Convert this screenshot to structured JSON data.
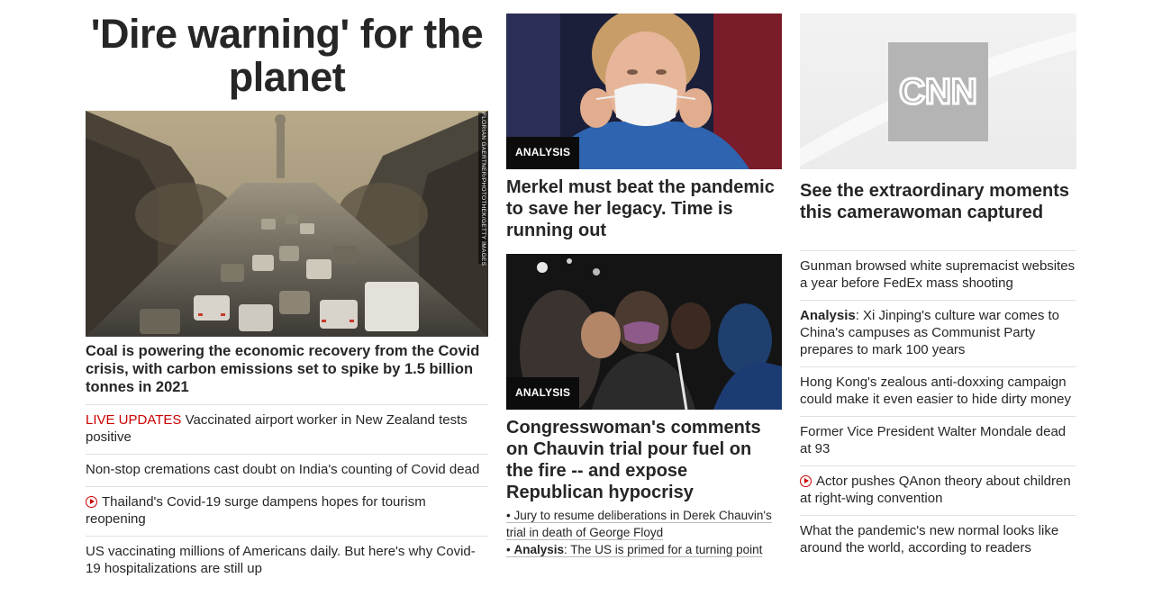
{
  "col1": {
    "headline": "'Dire warning' for the planet",
    "image_credit": "FLORIAN GAERTNER/PHOTOTHEK/GETTY IMAGES",
    "lead_caption": "Coal is powering the economic recovery from the Covid crisis, with carbon emissions set to spike by 1.5 billion tonnes in 2021",
    "items": [
      {
        "prefix": "LIVE UPDATES",
        "text": " Vaccinated airport worker in New Zealand tests positive"
      },
      {
        "text": "Non-stop cremations cast doubt on India's counting of Covid dead"
      },
      {
        "video": true,
        "text": "Thailand's Covid-19 surge dampens hopes for tourism reopening"
      },
      {
        "text": "US vaccinating millions of Americans daily. But here's why Covid-19 hospitalizations are still up"
      }
    ]
  },
  "col2": {
    "card1": {
      "tag": "ANALYSIS",
      "headline": "Merkel must beat the pandemic to save her legacy. Time is running out"
    },
    "card2": {
      "tag": "ANALYSIS",
      "headline": "Congresswoman's comments on Chauvin trial pour fuel on the fire -- and expose Republican hypocrisy"
    },
    "sub_links": [
      {
        "bullet": "• ",
        "text": "Jury to resume deliberations in Derek Chauvin's trial in death of George Floyd"
      },
      {
        "bullet": "• ",
        "bold": "Analysis",
        "text": ": The US is primed for a turning point"
      }
    ]
  },
  "col3": {
    "logo_text": "CNN",
    "headline": "See the extraordinary moments this camerawoman captured",
    "items": [
      {
        "text": "Gunman browsed white supremacist websites a year before FedEx mass shooting"
      },
      {
        "bold": "Analysis",
        "text": ": Xi Jinping's culture war comes to China's campuses as Communist Party prepares to mark 100 years"
      },
      {
        "text": "Hong Kong's zealous anti-doxxing campaign could make it even easier to hide dirty money"
      },
      {
        "text": "Former Vice President Walter Mondale dead at 93"
      },
      {
        "video": true,
        "text": "Actor pushes QAnon theory about children at right-wing convention"
      },
      {
        "text": "What the pandemic's new normal looks like around the world, according to readers"
      }
    ]
  },
  "colors": {
    "live": "#cc0000",
    "text": "#262626",
    "tag_bg": "#0c0c0c"
  }
}
